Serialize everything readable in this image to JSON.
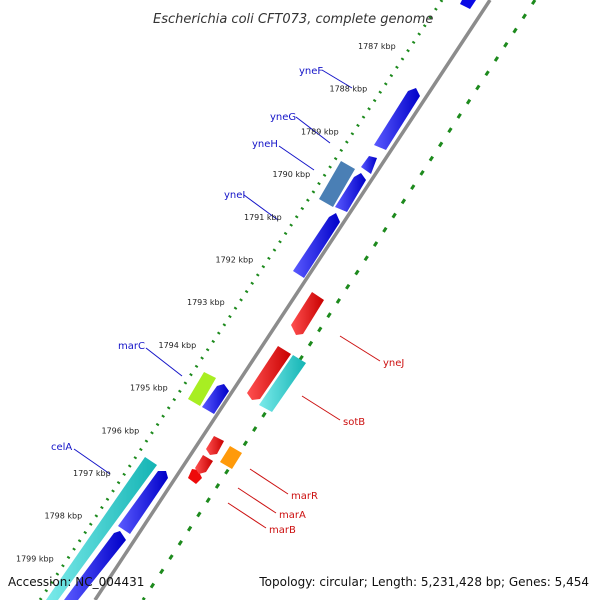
{
  "title": "Escherichia coli CFT073, complete genome",
  "footer": {
    "accession": "Accession: NC_004431",
    "summary": "Topology: circular; Length: 5,231,428 bp; Genes: 5,454"
  },
  "colors": {
    "forward_cds": "#0a0ae6",
    "reverse_cds": "#ee0a0a",
    "rna": "#22d3d3",
    "highlight_green": "#a8ee22",
    "highlight_orange": "#ff9a0a",
    "steel": "#4a7fb5",
    "backbone": "#8c8c8c",
    "gc_track": "#1d8a1d",
    "forward_label": "#1414c8",
    "reverse_label": "#cc1010"
  },
  "ticks": [
    "1787 kbp",
    "1788 kbp",
    "1789 kbp",
    "1790 kbp",
    "1791 kbp",
    "1792 kbp",
    "1793 kbp",
    "1794 kbp",
    "1795 kbp",
    "1796 kbp",
    "1797 kbp",
    "1798 kbp",
    "1799 kbp"
  ],
  "forward_labels": [
    "yneF",
    "yneG",
    "yneH",
    "yneI",
    "marC",
    "celA"
  ],
  "reverse_labels": [
    "yneJ",
    "sotB",
    "marR",
    "marA",
    "marB"
  ]
}
